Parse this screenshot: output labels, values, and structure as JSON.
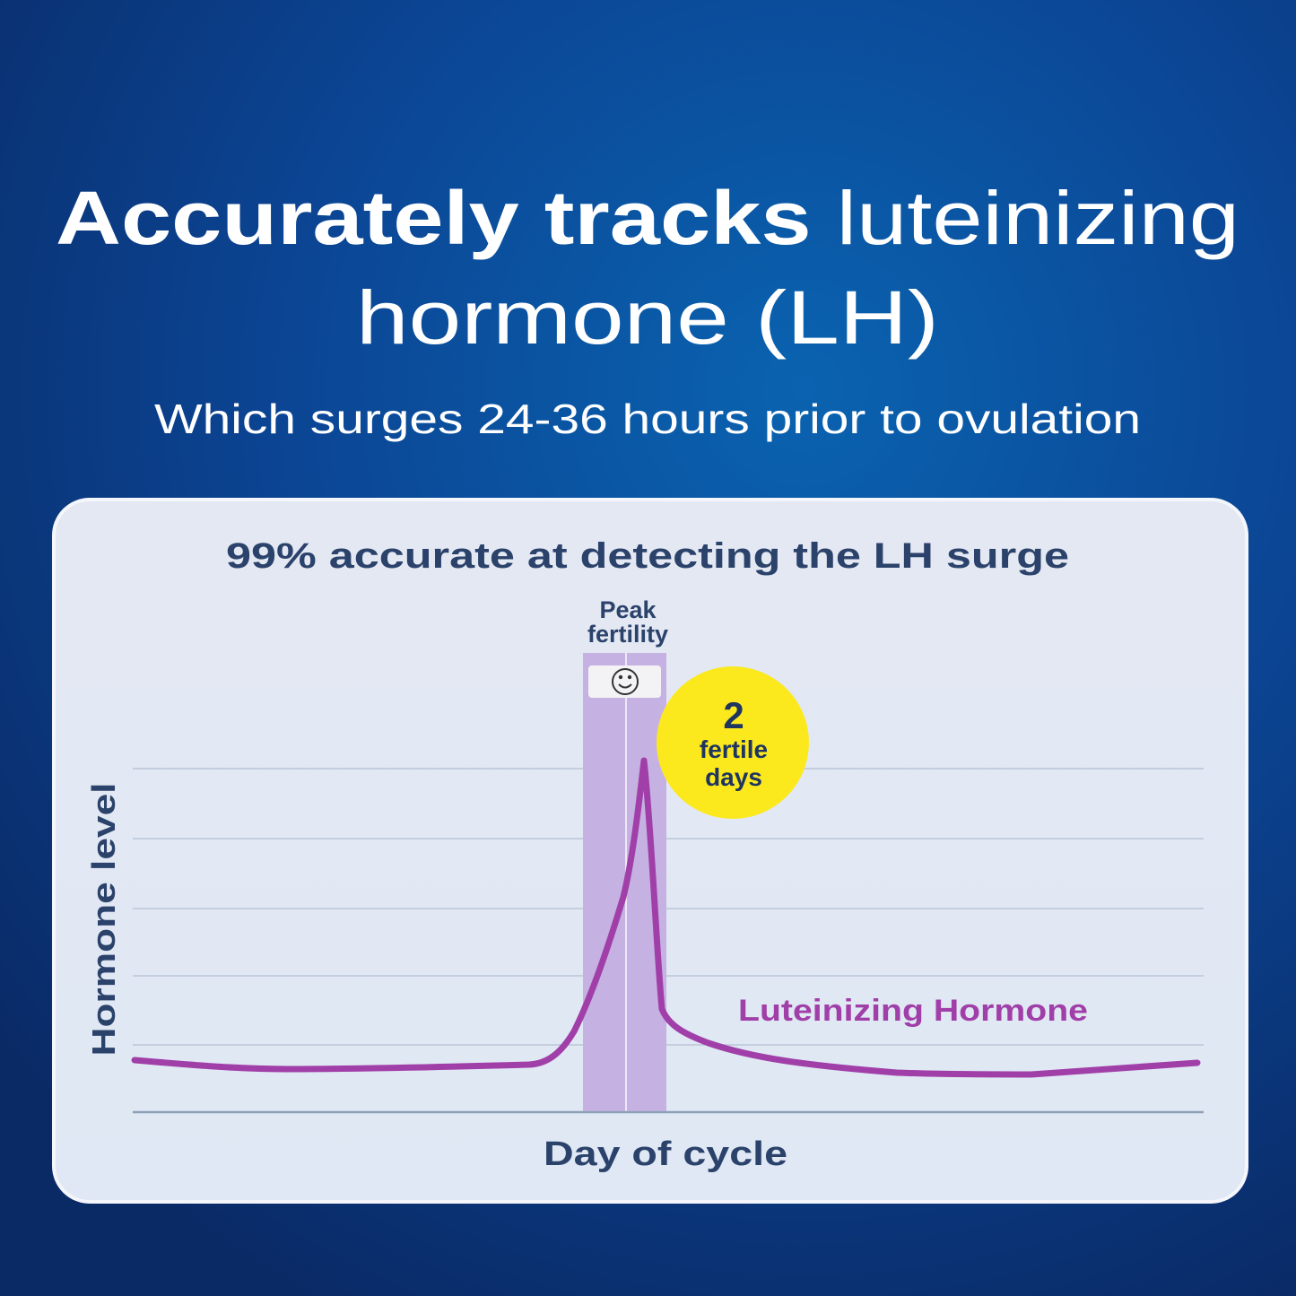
{
  "header": {
    "title_bold": "Accurately tracks",
    "title_regular_line1": "luteinizing",
    "title_line2": "hormone (LH)",
    "subtitle": "Which surges 24-36 hours prior to ovulation"
  },
  "card": {
    "title": "99% accurate at detecting the LH surge",
    "peak_label": [
      "Peak",
      "fertility"
    ],
    "badge": {
      "number": "2",
      "text": [
        "fertile",
        "days"
      ]
    },
    "curve_label": "Luteinizing Hormone",
    "y_axis_label": "Hormone level",
    "x_axis_label": "Day of cycle"
  }
}
